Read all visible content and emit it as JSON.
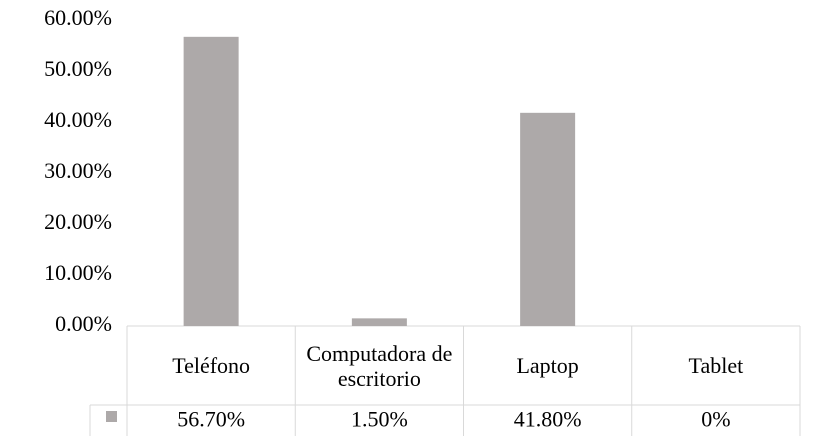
{
  "chart_data": {
    "type": "bar",
    "categories": [
      "Teléfono",
      "Computadora de escritorio",
      "Laptop",
      "Tablet"
    ],
    "values": [
      56.7,
      1.5,
      41.8,
      0
    ],
    "value_labels": [
      "56.70%",
      "1.50%",
      "41.80%",
      "0%"
    ],
    "color": "#ada9a9",
    "ylim": [
      0,
      60
    ],
    "yticks": [
      {
        "value": 0,
        "label": "0.00%"
      },
      {
        "value": 10,
        "label": "10.00%"
      },
      {
        "value": 20,
        "label": "20.00%"
      },
      {
        "value": 30,
        "label": "30.00%"
      },
      {
        "value": 40,
        "label": "40.00%"
      },
      {
        "value": 50,
        "label": "50.00%"
      },
      {
        "value": 60,
        "label": "60.00%"
      }
    ],
    "grid": false,
    "data_table": true
  }
}
